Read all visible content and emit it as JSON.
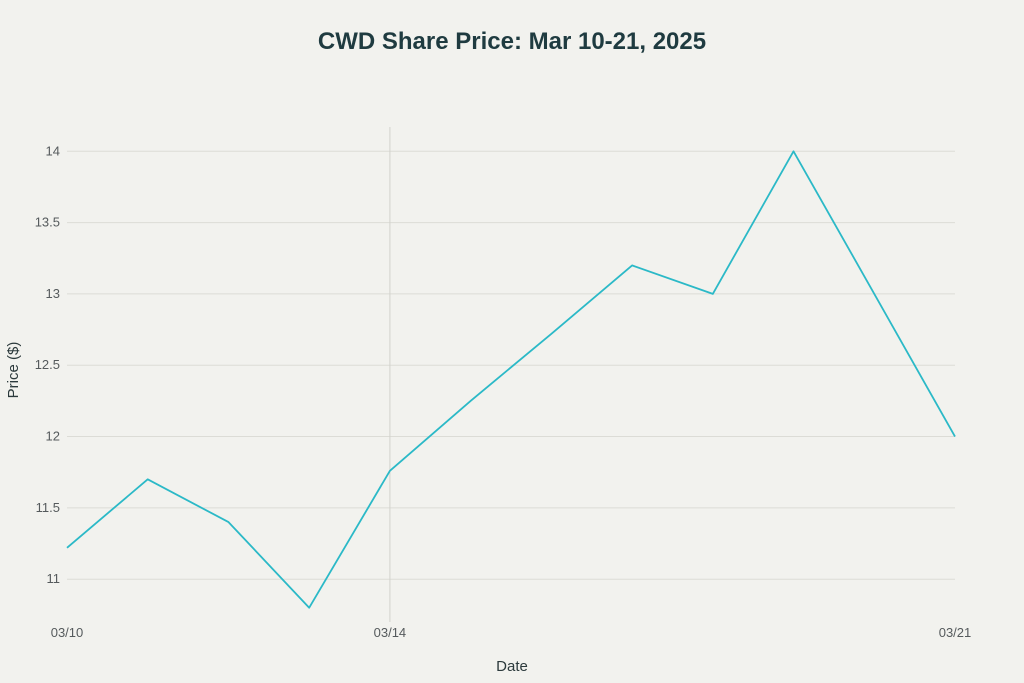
{
  "colors": {
    "background": "#f2f2ee",
    "line": "#2bb9c7",
    "title": "#1f3b40"
  },
  "chart_data": {
    "type": "line",
    "title": "CWD Share Price: Mar 10-21, 2025",
    "xlabel": "Date",
    "ylabel": "Price ($)",
    "x": [
      0,
      1,
      2,
      3,
      4,
      5,
      6,
      7,
      8,
      9,
      10,
      11
    ],
    "values": [
      11.22,
      11.7,
      11.4,
      10.8,
      11.76,
      12.25,
      12.72,
      13.2,
      13.0,
      14.0,
      13.0,
      12.0
    ],
    "xlim": [
      0,
      11
    ],
    "ylim": [
      10.7,
      14.17
    ],
    "x_ticks": [
      {
        "x": 0,
        "label": "03/10"
      },
      {
        "x": 4,
        "label": "03/14"
      },
      {
        "x": 11,
        "label": "03/21"
      }
    ],
    "y_ticks": [
      {
        "value": 11,
        "label": "11"
      },
      {
        "value": 11.5,
        "label": "11.5"
      },
      {
        "value": 12,
        "label": "12"
      },
      {
        "value": 12.5,
        "label": "12.5"
      },
      {
        "value": 13,
        "label": "13"
      },
      {
        "value": 13.5,
        "label": "13.5"
      },
      {
        "value": 14,
        "label": "14"
      }
    ],
    "series_name": "CWD"
  }
}
